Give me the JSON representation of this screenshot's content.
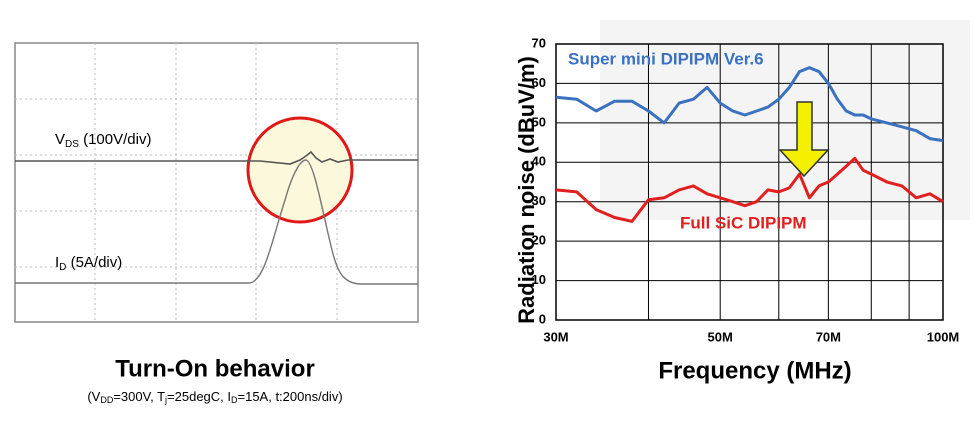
{
  "scope": {
    "vds_label": [
      "V",
      "DS",
      " (100V/div)"
    ],
    "id_label": [
      "I",
      "D",
      " (5A/div)"
    ],
    "caption": "Turn-On behavior",
    "subcaption": [
      "(V",
      "DD",
      "=300V, T",
      "j",
      "=25degC, I",
      "D",
      "=15A, t:200ns/div)"
    ]
  },
  "chart_data": {
    "type": "line",
    "x_label": "Frequency (MHz)",
    "y_label": "Radiation noise (dBuV/m)",
    "xscale": "log",
    "xlim": [
      30,
      100
    ],
    "xticks": [
      {
        "value": 30,
        "label": "30M"
      },
      {
        "value": 50,
        "label": "50M"
      },
      {
        "value": 70,
        "label": "70M"
      },
      {
        "value": 100,
        "label": "100M"
      }
    ],
    "xminorticks": [
      40,
      60,
      80,
      90
    ],
    "ylim": [
      0,
      70
    ],
    "yticks": [
      0,
      10,
      20,
      30,
      40,
      50,
      60,
      70
    ],
    "grid": true,
    "x": [
      30,
      32,
      34,
      36,
      38,
      40,
      42,
      44,
      46,
      48,
      50,
      52,
      54,
      56,
      58,
      60,
      62,
      64,
      66,
      68,
      70,
      72,
      74,
      76,
      78,
      80,
      84,
      88,
      92,
      96,
      100
    ],
    "series": [
      {
        "name": "Super mini DIPIPM Ver.6",
        "color": "#3a72c0",
        "values": [
          56.5,
          56,
          53,
          55.5,
          55.5,
          53,
          50,
          55,
          56,
          59,
          55,
          53,
          52,
          53,
          54,
          56,
          59,
          63,
          64,
          63,
          60,
          56,
          53,
          52,
          52,
          51,
          50,
          49,
          48,
          46,
          45.5
        ]
      },
      {
        "name": "Full SiC DIPIPM",
        "color": "#e02020",
        "values": [
          33,
          32.5,
          28,
          26,
          25,
          30.5,
          31,
          33,
          34,
          32,
          31,
          30,
          29,
          30,
          33,
          32.5,
          33.5,
          37,
          31,
          34,
          35,
          37,
          39,
          41,
          38,
          37,
          35,
          34,
          31,
          32,
          30
        ]
      }
    ]
  }
}
